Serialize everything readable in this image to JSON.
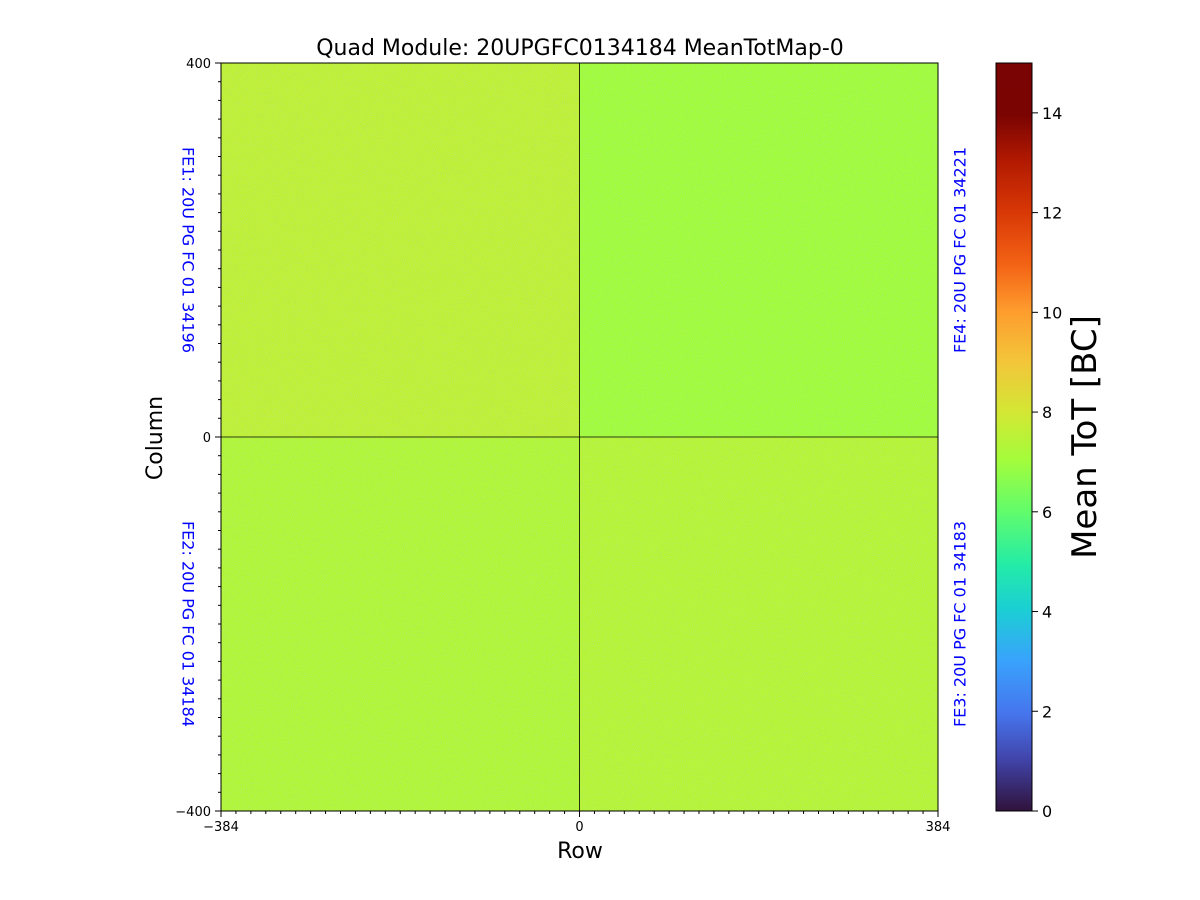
{
  "chart_data": {
    "type": "heatmap",
    "title": "Quad Module: 20UPGFC0134184 MeanTotMap-0",
    "xlabel": "Row",
    "ylabel": "Column",
    "xlim": [
      -384,
      384
    ],
    "ylim": [
      -400,
      400
    ],
    "x_ticks": [
      "−384",
      "0",
      "384"
    ],
    "y_ticks": [
      "400",
      "0",
      "−400"
    ],
    "colorbar": {
      "label": "Mean ToT [BC]",
      "range": [
        0,
        15
      ],
      "ticks": [
        "0",
        "2",
        "4",
        "6",
        "8",
        "10",
        "12",
        "14"
      ],
      "colormap": "turbo"
    },
    "quadrants": [
      {
        "name": "FE1",
        "label": "FE1: 20U PG FC 01 34196",
        "x_range": [
          -384,
          0
        ],
        "y_range": [
          0,
          400
        ],
        "approx_mean_tot": 7.6
      },
      {
        "name": "FE4",
        "label": "FE4: 20U PG FC 01 34221",
        "x_range": [
          0,
          384
        ],
        "y_range": [
          0,
          400
        ],
        "approx_mean_tot": 7.0
      },
      {
        "name": "FE2",
        "label": "FE2: 20U PG FC 01 34184",
        "x_range": [
          -384,
          0
        ],
        "y_range": [
          -400,
          0
        ],
        "approx_mean_tot": 7.3
      },
      {
        "name": "FE3",
        "label": "FE3: 20U PG FC 01 34183",
        "x_range": [
          0,
          384
        ],
        "y_range": [
          -400,
          0
        ],
        "approx_mean_tot": 7.4
      }
    ],
    "divider_lines": {
      "x": 0,
      "y": 0
    },
    "grid": false
  }
}
